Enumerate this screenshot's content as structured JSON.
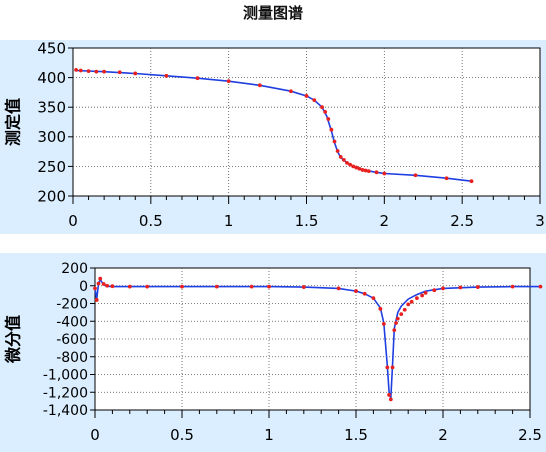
{
  "page_title": "测量图谱",
  "chart_data": [
    {
      "type": "line",
      "ylabel": "测定值",
      "xlim": [
        0,
        3
      ],
      "ylim": [
        200,
        450
      ],
      "x_ticks": [
        0,
        0.5,
        1,
        1.5,
        2,
        2.5,
        3
      ],
      "y_ticks": [
        200,
        250,
        300,
        350,
        400,
        450
      ],
      "x_tick_labels": [
        "0",
        "0.5",
        "1",
        "1.5",
        "2",
        "2.5",
        "3"
      ],
      "y_tick_labels": [
        "200",
        "250",
        "300",
        "350",
        "400",
        "450"
      ],
      "grid": true,
      "series": [
        {
          "color": "#1f3fe0",
          "line_only": true,
          "x": [
            0.02,
            0.2,
            0.4,
            0.6,
            0.8,
            1.0,
            1.2,
            1.4,
            1.5,
            1.55,
            1.6,
            1.63,
            1.66,
            1.68,
            1.7,
            1.72,
            1.76,
            1.8,
            1.85,
            1.9,
            2.0,
            2.2,
            2.4,
            2.56
          ],
          "y": [
            412,
            410,
            407,
            403,
            399,
            394,
            387,
            377,
            369,
            362,
            350,
            335,
            310,
            290,
            275,
            265,
            256,
            250,
            245,
            242,
            238,
            235,
            230,
            225
          ]
        },
        {
          "color": "#e82020",
          "marker_only": true,
          "x": [
            0.02,
            0.05,
            0.1,
            0.15,
            0.2,
            0.3,
            0.4,
            0.6,
            0.8,
            1.0,
            1.2,
            1.4,
            1.5,
            1.55,
            1.6,
            1.62,
            1.64,
            1.66,
            1.68,
            1.7,
            1.72,
            1.74,
            1.76,
            1.78,
            1.8,
            1.82,
            1.84,
            1.86,
            1.88,
            1.9,
            1.95,
            2.0,
            2.2,
            2.4,
            2.56
          ],
          "y": [
            413,
            412,
            411,
            410,
            410,
            409,
            407,
            403,
            399,
            394,
            387,
            377,
            369,
            362,
            350,
            342,
            330,
            312,
            292,
            276,
            266,
            261,
            256,
            253,
            250,
            248,
            246,
            244,
            243,
            242,
            240,
            238,
            235,
            230,
            225
          ]
        }
      ]
    },
    {
      "type": "line",
      "ylabel": "微分值",
      "xlim": [
        0,
        2.5
      ],
      "ylim": [
        -1400,
        200
      ],
      "x_ticks": [
        0,
        0.5,
        1,
        1.5,
        2,
        2.5
      ],
      "y_ticks": [
        200,
        0,
        -200,
        -400,
        -600,
        -800,
        -1000,
        -1200,
        -1400
      ],
      "x_tick_labels": [
        "0",
        "0.5",
        "1",
        "1.5",
        "2",
        "2.5"
      ],
      "y_tick_labels": [
        "200",
        "0",
        "-200",
        "-400",
        "-600",
        "-800",
        "-1,000",
        "-1,200",
        "-1,400"
      ],
      "grid": true,
      "series": [
        {
          "color": "#1f3fe0",
          "line_only": true,
          "x": [
            0.0,
            0.01,
            0.02,
            0.03,
            0.05,
            0.07,
            0.1,
            0.2,
            0.5,
            1.0,
            1.2,
            1.4,
            1.5,
            1.55,
            1.6,
            1.64,
            1.66,
            1.68,
            1.69,
            1.7,
            1.71,
            1.72,
            1.74,
            1.76,
            1.8,
            1.85,
            1.9,
            2.0,
            2.2,
            2.4,
            2.56
          ],
          "y": [
            -30,
            -150,
            20,
            70,
            10,
            -5,
            -10,
            -10,
            -10,
            -10,
            -15,
            -30,
            -60,
            -90,
            -140,
            -250,
            -420,
            -900,
            -1200,
            -1270,
            -900,
            -480,
            -300,
            -230,
            -150,
            -100,
            -60,
            -30,
            -15,
            -10,
            -10
          ]
        },
        {
          "color": "#e82020",
          "marker_only": true,
          "x": [
            0.0,
            0.01,
            0.02,
            0.03,
            0.05,
            0.07,
            0.1,
            0.2,
            0.3,
            0.5,
            0.7,
            0.9,
            1.0,
            1.2,
            1.4,
            1.5,
            1.55,
            1.6,
            1.64,
            1.66,
            1.68,
            1.69,
            1.7,
            1.71,
            1.72,
            1.73,
            1.74,
            1.76,
            1.78,
            1.8,
            1.82,
            1.85,
            1.88,
            1.9,
            1.95,
            2.0,
            2.1,
            2.2,
            2.4,
            2.56
          ],
          "y": [
            -30,
            -160,
            25,
            80,
            20,
            0,
            -5,
            -10,
            -10,
            -10,
            -10,
            -10,
            -10,
            -15,
            -30,
            -60,
            -90,
            -140,
            -260,
            -430,
            -920,
            -1230,
            -1280,
            -920,
            -500,
            -420,
            -370,
            -320,
            -270,
            -210,
            -180,
            -140,
            -110,
            -80,
            -50,
            -30,
            -20,
            -15,
            -10,
            -10
          ]
        }
      ]
    }
  ]
}
